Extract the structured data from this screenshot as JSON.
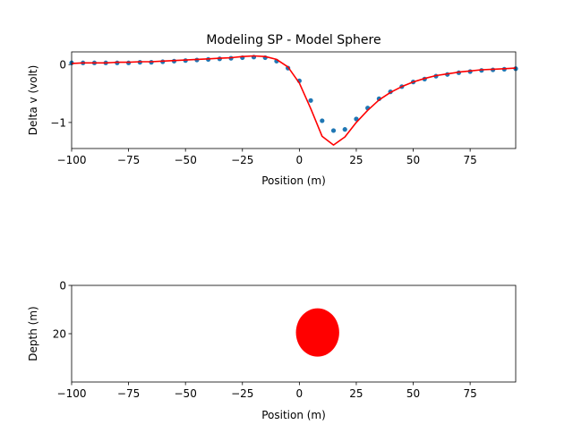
{
  "chart_data": [
    {
      "type": "line",
      "title": "Modeling SP - Model Sphere",
      "xlabel": "Position (m)",
      "ylabel": "Delta v (volt)",
      "xlim": [
        -100,
        95
      ],
      "ylim": [
        -1.45,
        0.22
      ],
      "xticks": [
        -100,
        -75,
        -50,
        -25,
        0,
        25,
        50,
        75
      ],
      "xtick_labels": [
        "−100",
        "−75",
        "−50",
        "−25",
        "0",
        "25",
        "50",
        "75"
      ],
      "yticks": [
        0,
        -1
      ],
      "ytick_labels": [
        "0",
        "−1"
      ],
      "grid": false,
      "series": [
        {
          "kind": "scatter",
          "color": "#1f77b4",
          "x": [
            -100,
            -95,
            -90,
            -85,
            -80,
            -75,
            -70,
            -65,
            -60,
            -55,
            -50,
            -45,
            -40,
            -35,
            -30,
            -25,
            -20,
            -15,
            -10,
            -5,
            0,
            5,
            10,
            15,
            20,
            25,
            30,
            35,
            40,
            45,
            50,
            55,
            60,
            65,
            70,
            75,
            80,
            85,
            90,
            95
          ],
          "y": [
            0.03,
            0.03,
            0.03,
            0.03,
            0.03,
            0.03,
            0.04,
            0.04,
            0.05,
            0.06,
            0.07,
            0.08,
            0.09,
            0.1,
            0.11,
            0.12,
            0.13,
            0.12,
            0.06,
            -0.06,
            -0.28,
            -0.62,
            -0.97,
            -1.14,
            -1.12,
            -0.94,
            -0.75,
            -0.59,
            -0.47,
            -0.38,
            -0.3,
            -0.25,
            -0.2,
            -0.17,
            -0.14,
            -0.12,
            -0.1,
            -0.09,
            -0.08,
            -0.07
          ]
        },
        {
          "kind": "line",
          "color": "#ff0000",
          "x": [
            -100,
            -95,
            -90,
            -85,
            -80,
            -75,
            -70,
            -65,
            -60,
            -55,
            -50,
            -45,
            -40,
            -35,
            -30,
            -25,
            -20,
            -15,
            -10,
            -5,
            0,
            5,
            10,
            15,
            20,
            25,
            30,
            35,
            40,
            45,
            50,
            55,
            60,
            65,
            70,
            75,
            80,
            85,
            90,
            95
          ],
          "y": [
            0.02,
            0.03,
            0.03,
            0.03,
            0.04,
            0.04,
            0.05,
            0.05,
            0.06,
            0.07,
            0.08,
            0.09,
            0.1,
            0.11,
            0.12,
            0.14,
            0.15,
            0.14,
            0.09,
            -0.04,
            -0.32,
            -0.76,
            -1.24,
            -1.39,
            -1.25,
            -1.0,
            -0.79,
            -0.61,
            -0.48,
            -0.38,
            -0.3,
            -0.24,
            -0.19,
            -0.16,
            -0.13,
            -0.11,
            -0.09,
            -0.08,
            -0.07,
            -0.06
          ]
        }
      ]
    },
    {
      "type": "scatter",
      "title": "",
      "xlabel": "Position (m)",
      "ylabel": "Depth (m)",
      "xlim": [
        -100,
        95
      ],
      "ylim": [
        0,
        40
      ],
      "y_inverted": true,
      "xticks": [
        -100,
        -75,
        -50,
        -25,
        0,
        25,
        50,
        75
      ],
      "xtick_labels": [
        "−100",
        "−75",
        "−50",
        "−25",
        "0",
        "25",
        "50",
        "75"
      ],
      "yticks": [
        0,
        20
      ],
      "ytick_labels": [
        "0",
        "20"
      ],
      "grid": false,
      "sphere": {
        "center_x": 8,
        "center_depth": 19.5,
        "radius_x": 9.5,
        "radius_depth": 10,
        "color": "#ff0000"
      }
    }
  ]
}
